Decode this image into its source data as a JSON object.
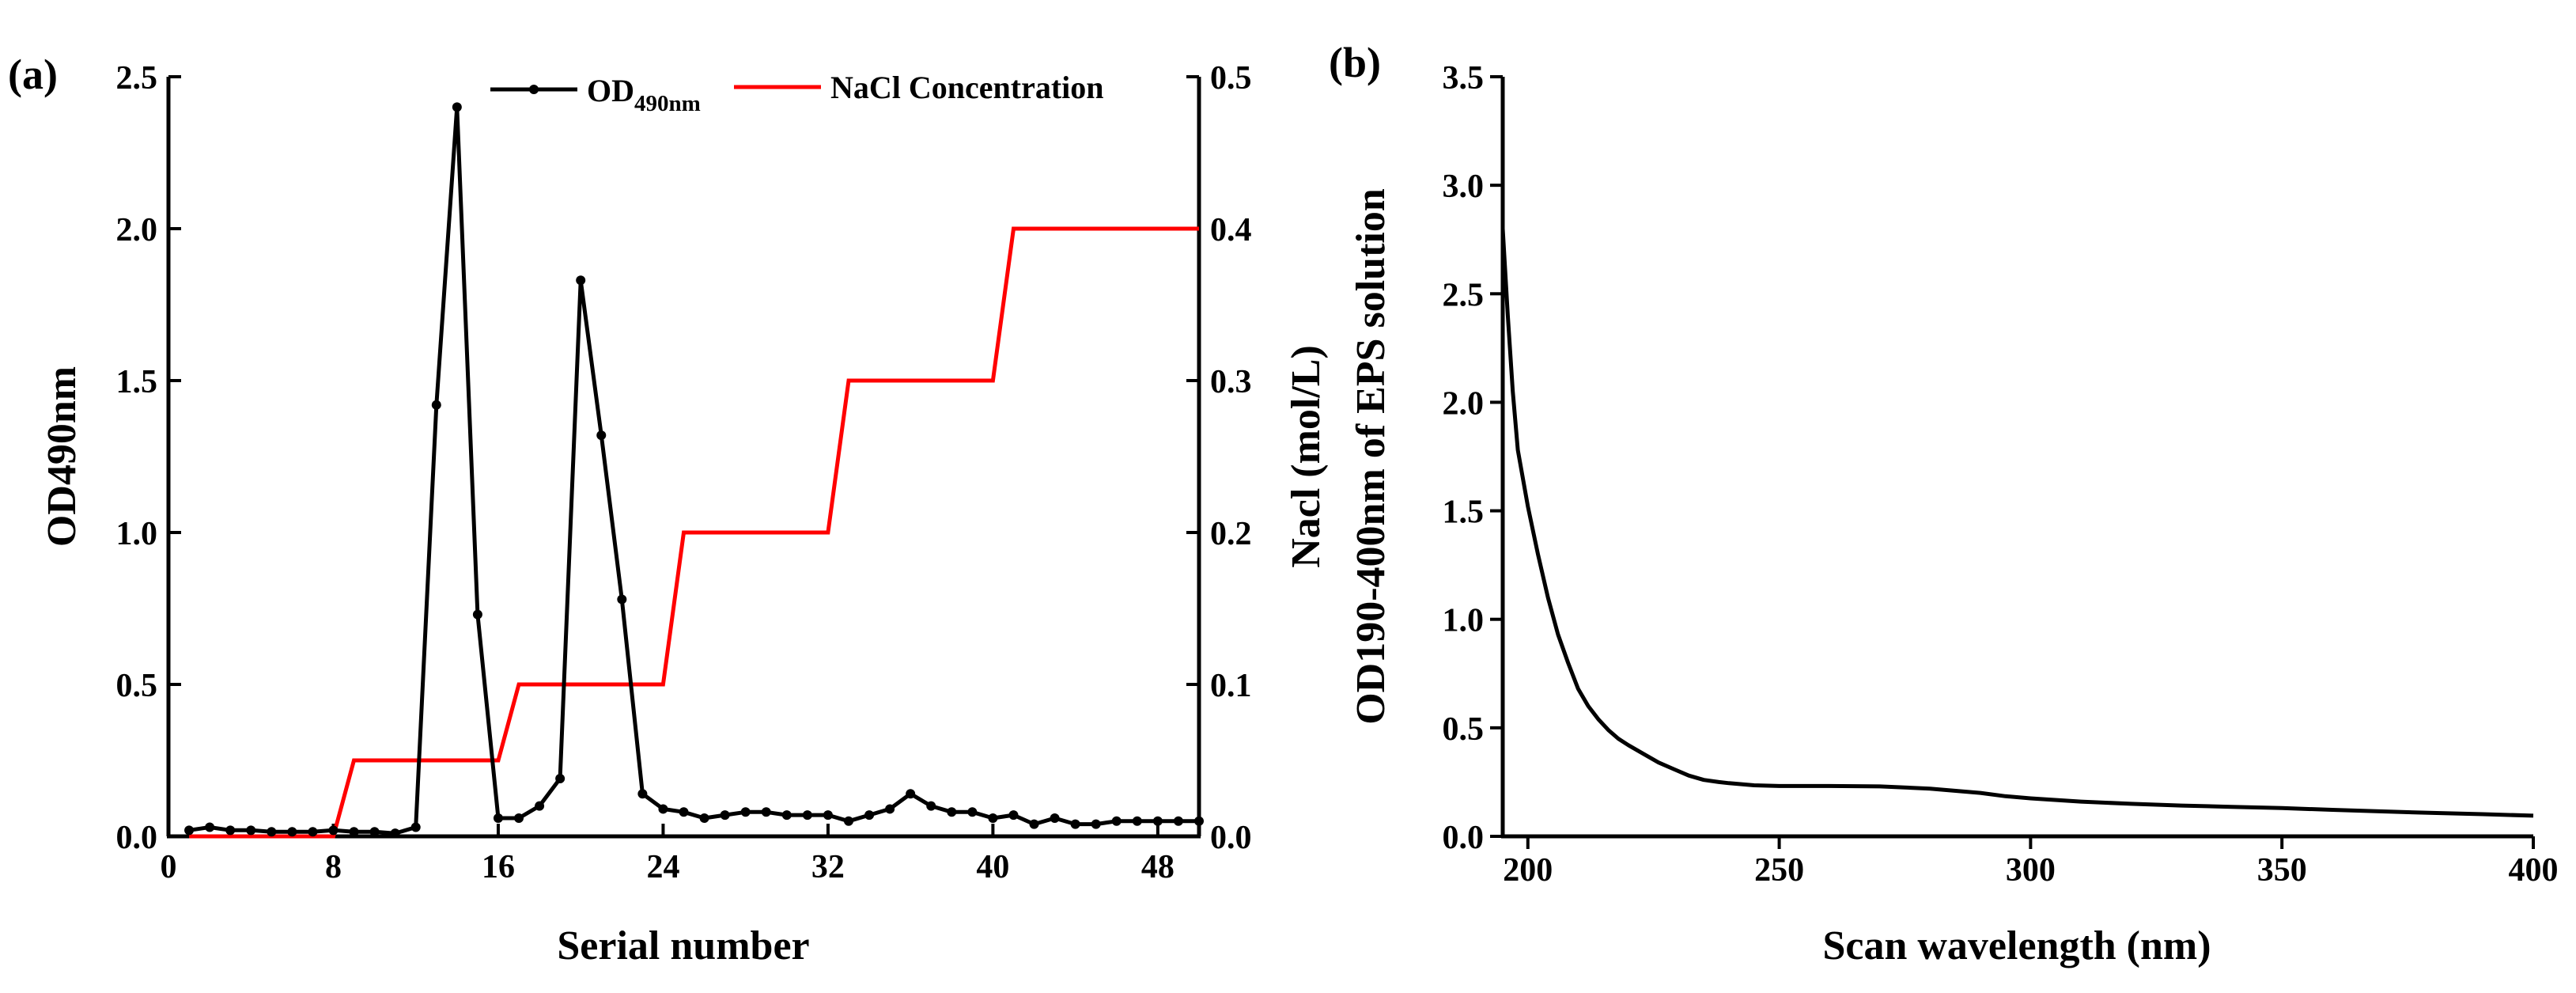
{
  "chart_data": [
    {
      "type": "line",
      "panel_label": "(a)",
      "xlabel": "Serial number",
      "ylabel_left": "OD490nm",
      "ylabel_right": "Nacl (mol/L)",
      "xlim": [
        0,
        50
      ],
      "ylim_left": [
        0,
        2.5
      ],
      "ylim_right": [
        0,
        0.5
      ],
      "xticks": [
        "0",
        "8",
        "16",
        "24",
        "32",
        "40",
        "48"
      ],
      "yticks_left": [
        "0.0",
        "0.5",
        "1.0",
        "1.5",
        "2.0",
        "2.5"
      ],
      "yticks_right": [
        "0.0",
        "0.1",
        "0.2",
        "0.3",
        "0.4",
        "0.5"
      ],
      "legend": {
        "od_main": "OD",
        "od_sub": "490nm",
        "nacl": "NaCl Concentration",
        "position": "top"
      },
      "series": [
        {
          "name": "OD490nm",
          "axis": "left",
          "color": "#000000",
          "marker": "circle",
          "x": [
            1,
            2,
            3,
            4,
            5,
            6,
            7,
            8,
            9,
            10,
            11,
            12,
            13,
            14,
            15,
            16,
            17,
            18,
            19,
            20,
            21,
            22,
            23,
            24,
            25,
            26,
            27,
            28,
            29,
            30,
            31,
            32,
            33,
            34,
            35,
            36,
            37,
            38,
            39,
            40,
            41,
            42,
            43,
            44,
            45,
            46,
            47,
            48,
            49,
            50
          ],
          "y": [
            0.02,
            0.03,
            0.02,
            0.02,
            0.015,
            0.015,
            0.015,
            0.02,
            0.015,
            0.015,
            0.01,
            0.03,
            1.42,
            2.4,
            0.73,
            0.06,
            0.06,
            0.1,
            0.19,
            1.83,
            1.32,
            0.78,
            0.14,
            0.09,
            0.08,
            0.06,
            0.07,
            0.08,
            0.08,
            0.07,
            0.07,
            0.07,
            0.05,
            0.07,
            0.09,
            0.14,
            0.1,
            0.08,
            0.08,
            0.06,
            0.07,
            0.04,
            0.06,
            0.04,
            0.04,
            0.05,
            0.05,
            0.05,
            0.05,
            0.05
          ]
        },
        {
          "name": "NaCl Concentration",
          "axis": "right",
          "color": "#ff0000",
          "marker": "none",
          "x": [
            1,
            8,
            9,
            16,
            17,
            24,
            25,
            32,
            33,
            40,
            41,
            50
          ],
          "y": [
            0,
            0,
            0.05,
            0.05,
            0.1,
            0.1,
            0.2,
            0.2,
            0.3,
            0.3,
            0.4,
            0.4
          ]
        }
      ]
    },
    {
      "type": "line",
      "panel_label": "(b)",
      "xlabel": "Scan wavelength (nm)",
      "ylabel_main": "OD",
      "ylabel_sub": "190-400nm",
      "ylabel_rest": " of EPS solution",
      "xlim": [
        195,
        400
      ],
      "ylim": [
        0,
        3.5
      ],
      "xticks": [
        "200",
        "250",
        "300",
        "350",
        "400"
      ],
      "yticks": [
        "0.0",
        "0.5",
        "1.0",
        "1.5",
        "2.0",
        "2.5",
        "3.0",
        "3.5"
      ],
      "series": [
        {
          "name": "OD190-400nm of EPS solution",
          "color": "#000000",
          "x": [
            195,
            196,
            197,
            198,
            200,
            202,
            204,
            206,
            208,
            210,
            212,
            214,
            216,
            218,
            220,
            223,
            226,
            229,
            232,
            235,
            238,
            240,
            245,
            250,
            255,
            260,
            270,
            280,
            290,
            295,
            300,
            310,
            320,
            330,
            340,
            350,
            360,
            370,
            380,
            390,
            400
          ],
          "y": [
            2.8,
            2.4,
            2.05,
            1.78,
            1.52,
            1.3,
            1.1,
            0.93,
            0.8,
            0.68,
            0.6,
            0.54,
            0.49,
            0.45,
            0.42,
            0.38,
            0.34,
            0.31,
            0.28,
            0.26,
            0.25,
            0.245,
            0.235,
            0.232,
            0.232,
            0.232,
            0.23,
            0.22,
            0.2,
            0.185,
            0.175,
            0.16,
            0.15,
            0.142,
            0.136,
            0.13,
            0.122,
            0.115,
            0.108,
            0.102,
            0.095
          ]
        }
      ]
    }
  ]
}
